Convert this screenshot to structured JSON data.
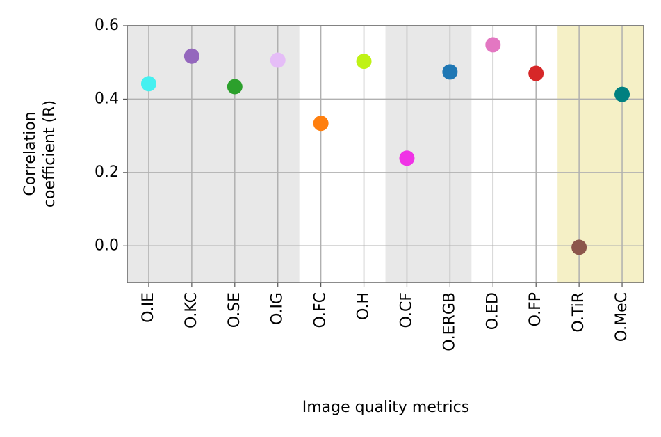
{
  "chart_data": {
    "type": "scatter",
    "xlabel": "Image quality metrics",
    "ylabel": [
      "Correlation",
      "coefficient (R)"
    ],
    "categories": [
      "O.IE",
      "O.KC",
      "O.SE",
      "O.IG",
      "O.FC",
      "O.H",
      "O.CF",
      "O.ERGB",
      "O.ED",
      "O.FP",
      "O.TiR",
      "O.MeC"
    ],
    "values": [
      0.442,
      0.517,
      0.434,
      0.506,
      0.334,
      0.503,
      0.239,
      0.474,
      0.548,
      0.47,
      -0.004,
      0.413
    ],
    "colors": [
      "#45f0f0",
      "#9467bd",
      "#2ca02c",
      "#e5bdf7",
      "#ff7f0e",
      "#bff215",
      "#f032e6",
      "#1f77b4",
      "#e377c2",
      "#d62728",
      "#8c564b",
      "#008080"
    ],
    "bands": [
      {
        "start": 0,
        "end": 3,
        "color": "#e8e8e8"
      },
      {
        "start": 6,
        "end": 7,
        "color": "#e8e8e8"
      },
      {
        "start": 10,
        "end": 11,
        "color": "#f5f0c6"
      }
    ],
    "ylim": [
      -0.1,
      0.6
    ],
    "yticks": [
      {
        "value": 0,
        "label": "0.0"
      },
      0.2,
      0.4,
      0.6
    ],
    "grid": true
  }
}
